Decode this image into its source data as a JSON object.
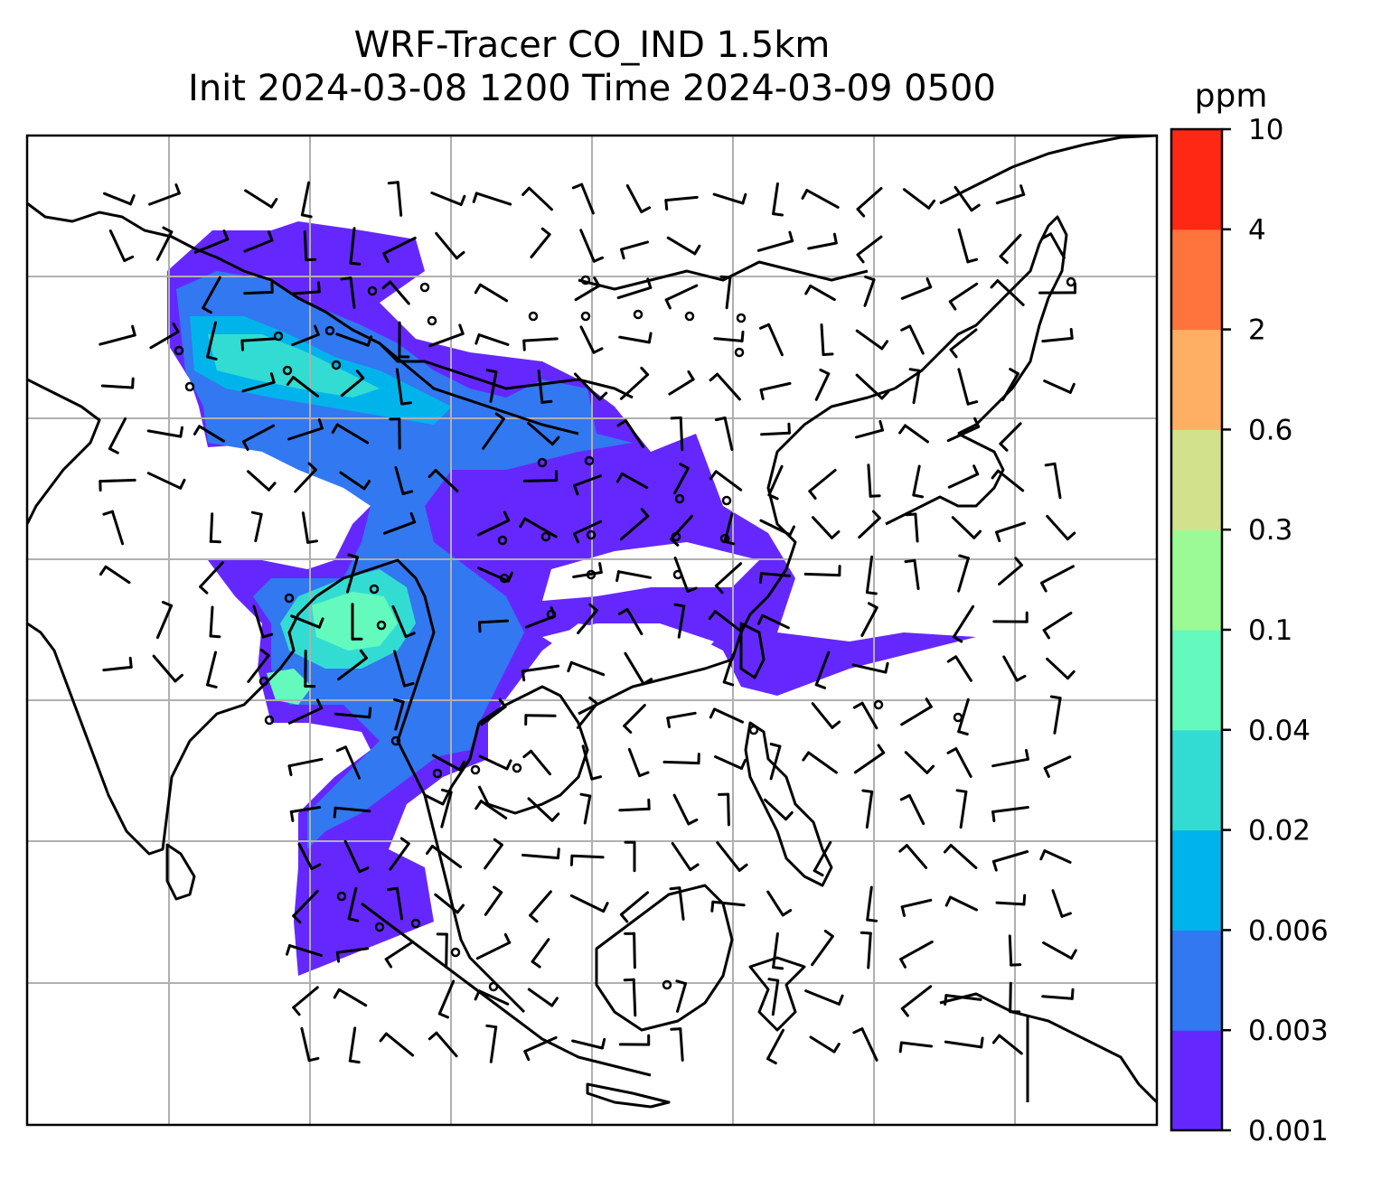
{
  "title": {
    "line1": "WRF-Tracer CO_IND 1.5km",
    "line2": "Init 2024-03-08 1200 Time 2024-03-09 0500"
  },
  "colorbar": {
    "unit": "ppm",
    "levels": [
      "0.001",
      "0.003",
      "0.006",
      "0.02",
      "0.04",
      "0.1",
      "0.3",
      "0.6",
      "2",
      "4",
      "10"
    ],
    "colors": [
      "#6428ff",
      "#3278f0",
      "#00b4eb",
      "#32dcd2",
      "#64fabe",
      "#9bfa96",
      "#d2e18c",
      "#ffaf64",
      "#ff733c",
      "#ff2814"
    ]
  },
  "map": {
    "coastline_color": "#000000",
    "grid_color": "#b0b0b0",
    "wind_barb_color": "#000000"
  }
}
